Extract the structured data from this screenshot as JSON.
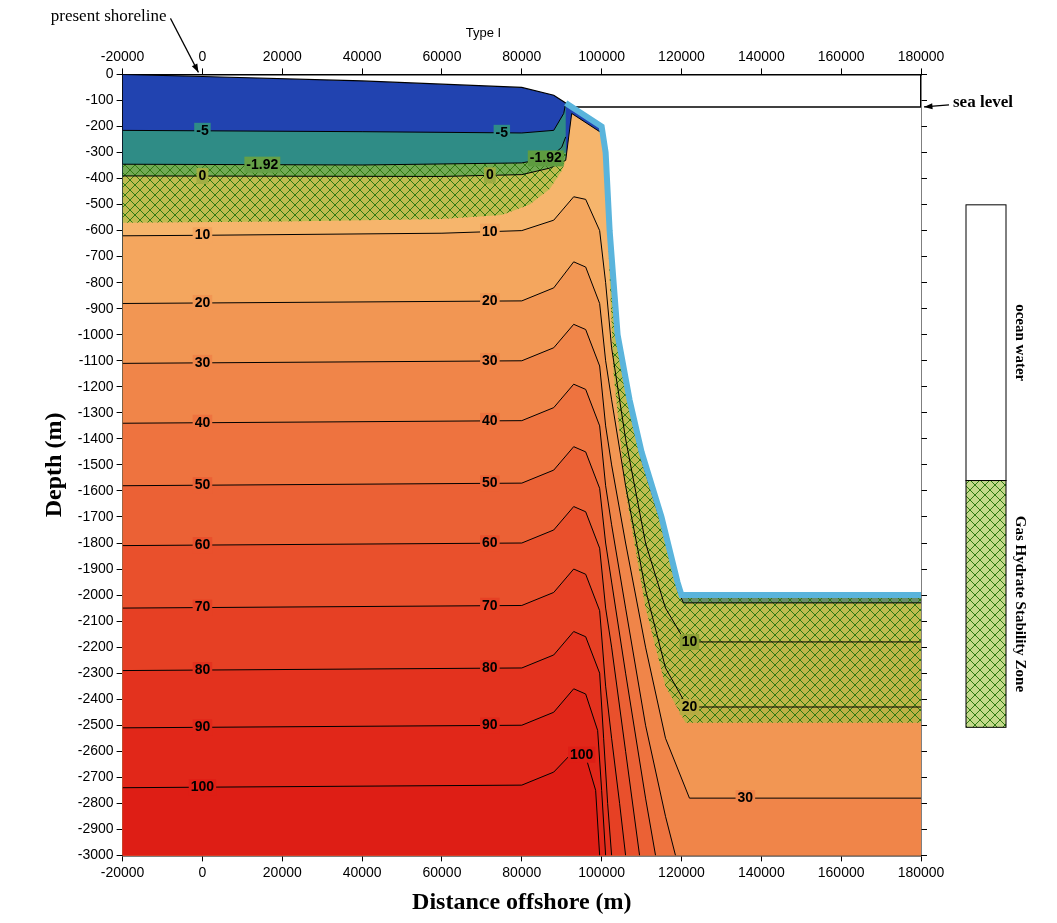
{
  "chart_data": {
    "type": "line",
    "title": "Type I",
    "x_label": "Distance offshore (m)",
    "y_label": "Depth (m)",
    "xlim": [
      -20000,
      180000
    ],
    "xticks": [
      -20000,
      0,
      20000,
      40000,
      60000,
      80000,
      100000,
      120000,
      140000,
      160000,
      180000
    ],
    "ylim": [
      -3000,
      0
    ],
    "yticks": [
      -3000,
      -2900,
      -2800,
      -2700,
      -2600,
      -2500,
      -2400,
      -2300,
      -2200,
      -2100,
      -2000,
      -1900,
      -1800,
      -1700,
      -1600,
      -1500,
      -1400,
      -1300,
      -1200,
      -1100,
      -1000,
      -900,
      -800,
      -700,
      -600,
      -500,
      -400,
      -300,
      -200,
      -100,
      0
    ],
    "grid": false,
    "legend": "right",
    "surface": {
      "color": "#2143b0",
      "points": [
        [
          -20000,
          0
        ],
        [
          0,
          -8
        ],
        [
          40000,
          -25
        ],
        [
          80000,
          -50
        ],
        [
          88000,
          -80
        ],
        [
          91000,
          -110
        ],
        [
          100000,
          -200
        ],
        [
          101000,
          -300
        ],
        [
          102000,
          -600
        ],
        [
          104000,
          -1000
        ],
        [
          107000,
          -1250
        ],
        [
          110000,
          -1450
        ],
        [
          115000,
          -1700
        ],
        [
          119000,
          -1950
        ],
        [
          120000,
          -2000
        ],
        [
          180000,
          -2000
        ]
      ]
    },
    "seafloor": {
      "color": "#5ab4dc",
      "points": [
        [
          91000,
          -110
        ],
        [
          100000,
          -200
        ],
        [
          101000,
          -300
        ],
        [
          102000,
          -600
        ],
        [
          104000,
          -1000
        ],
        [
          107000,
          -1250
        ],
        [
          110000,
          -1450
        ],
        [
          115000,
          -1700
        ],
        [
          119000,
          -1950
        ],
        [
          120000,
          -2000
        ],
        [
          180000,
          -2000
        ]
      ]
    },
    "isotherms": [
      {
        "value": -5,
        "color": "#2f8c86",
        "label_x": [
          0,
          75000
        ],
        "points": [
          [
            -20000,
            -215
          ],
          [
            40000,
            -220
          ],
          [
            80000,
            -225
          ],
          [
            88000,
            -215
          ],
          [
            90500,
            -150
          ],
          [
            91000,
            -110
          ]
        ]
      },
      {
        "value": -1.92,
        "color": "#368a78",
        "label_x": [
          15000,
          86000
        ],
        "points": [
          [
            -20000,
            -345
          ],
          [
            40000,
            -348
          ],
          [
            80000,
            -340
          ],
          [
            87000,
            -320
          ],
          [
            90000,
            -280
          ],
          [
            91000,
            -240
          ]
        ]
      },
      {
        "value": 0,
        "color": "#f6b56c",
        "label_x": [
          0,
          72000
        ],
        "points": [
          [
            -20000,
            -390
          ],
          [
            60000,
            -392
          ],
          [
            80000,
            -385
          ],
          [
            87000,
            -360
          ],
          [
            91000,
            -330
          ],
          [
            92500,
            -150
          ],
          [
            100000,
            -225
          ],
          [
            101000,
            -330
          ],
          [
            102000,
            -630
          ],
          [
            104000,
            -1030
          ],
          [
            107000,
            -1280
          ],
          [
            110000,
            -1480
          ],
          [
            115000,
            -1730
          ],
          [
            119000,
            -1980
          ],
          [
            120500,
            -2030
          ],
          [
            180000,
            -2030
          ]
        ]
      },
      {
        "value": 10,
        "color": "#f4a65e",
        "label_x": [
          0,
          72000,
          122000
        ],
        "points": [
          [
            -20000,
            -620
          ],
          [
            0,
            -618
          ],
          [
            60000,
            -610
          ],
          [
            80000,
            -600
          ],
          [
            88000,
            -560
          ],
          [
            93000,
            -470
          ],
          [
            96000,
            -480
          ],
          [
            99500,
            -600
          ],
          [
            101000,
            -800
          ],
          [
            102500,
            -1050
          ],
          [
            106000,
            -1400
          ],
          [
            111000,
            -1800
          ],
          [
            116000,
            -2050
          ],
          [
            121000,
            -2180
          ],
          [
            180000,
            -2180
          ]
        ]
      },
      {
        "value": 20,
        "color": "#f29653",
        "label_x": [
          0,
          72000,
          122000
        ],
        "points": [
          [
            -20000,
            -880
          ],
          [
            80000,
            -870
          ],
          [
            88000,
            -820
          ],
          [
            93000,
            -720
          ],
          [
            96000,
            -740
          ],
          [
            99500,
            -880
          ],
          [
            101000,
            -1100
          ],
          [
            102500,
            -1250
          ],
          [
            106000,
            -1580
          ],
          [
            111000,
            -1980
          ],
          [
            116000,
            -2280
          ],
          [
            121500,
            -2430
          ],
          [
            180000,
            -2430
          ]
        ]
      },
      {
        "value": 30,
        "color": "#f08549",
        "label_x": [
          0,
          72000,
          136000
        ],
        "points": [
          [
            -20000,
            -1110
          ],
          [
            80000,
            -1100
          ],
          [
            88000,
            -1050
          ],
          [
            93000,
            -960
          ],
          [
            96000,
            -980
          ],
          [
            99500,
            -1120
          ],
          [
            101000,
            -1350
          ],
          [
            102500,
            -1500
          ],
          [
            106000,
            -1800
          ],
          [
            111000,
            -2200
          ],
          [
            116000,
            -2550
          ],
          [
            122000,
            -2780
          ],
          [
            180000,
            -2780
          ]
        ]
      },
      {
        "value": 40,
        "color": "#ee733f",
        "label_x": [
          0,
          72000
        ],
        "points": [
          [
            -20000,
            -1340
          ],
          [
            80000,
            -1330
          ],
          [
            88000,
            -1280
          ],
          [
            93000,
            -1190
          ],
          [
            96000,
            -1210
          ],
          [
            99500,
            -1350
          ],
          [
            101000,
            -1580
          ],
          [
            102500,
            -1730
          ],
          [
            106000,
            -2050
          ],
          [
            111000,
            -2500
          ],
          [
            116000,
            -2850
          ],
          [
            118500,
            -3000
          ]
        ]
      },
      {
        "value": 50,
        "color": "#eb6135",
        "label_x": [
          0,
          72000
        ],
        "points": [
          [
            -20000,
            -1580
          ],
          [
            80000,
            -1570
          ],
          [
            88000,
            -1520
          ],
          [
            93000,
            -1430
          ],
          [
            96000,
            -1450
          ],
          [
            99500,
            -1590
          ],
          [
            101000,
            -1800
          ],
          [
            102500,
            -1950
          ],
          [
            106000,
            -2300
          ],
          [
            111000,
            -2780
          ],
          [
            113500,
            -3000
          ]
        ]
      },
      {
        "value": 60,
        "color": "#e9502c",
        "label_x": [
          0,
          72000
        ],
        "points": [
          [
            -20000,
            -1810
          ],
          [
            80000,
            -1800
          ],
          [
            88000,
            -1750
          ],
          [
            93000,
            -1660
          ],
          [
            96000,
            -1680
          ],
          [
            99500,
            -1820
          ],
          [
            101000,
            -2050
          ],
          [
            102500,
            -2200
          ],
          [
            106000,
            -2600
          ],
          [
            109500,
            -3000
          ]
        ]
      },
      {
        "value": 70,
        "color": "#e64024",
        "label_x": [
          0,
          72000
        ],
        "points": [
          [
            -20000,
            -2050
          ],
          [
            80000,
            -2040
          ],
          [
            88000,
            -1990
          ],
          [
            93000,
            -1900
          ],
          [
            96000,
            -1920
          ],
          [
            99500,
            -2060
          ],
          [
            101000,
            -2350
          ],
          [
            102500,
            -2550
          ],
          [
            104500,
            -2800
          ],
          [
            106000,
            -3000
          ]
        ]
      },
      {
        "value": 80,
        "color": "#e3321e",
        "label_x": [
          0,
          72000
        ],
        "points": [
          [
            -20000,
            -2290
          ],
          [
            80000,
            -2280
          ],
          [
            88000,
            -2230
          ],
          [
            93000,
            -2140
          ],
          [
            96000,
            -2160
          ],
          [
            99500,
            -2300
          ],
          [
            100500,
            -2550
          ],
          [
            101500,
            -2800
          ],
          [
            102500,
            -3000
          ]
        ]
      },
      {
        "value": 90,
        "color": "#e12719",
        "label_x": [
          0,
          72000
        ],
        "points": [
          [
            -20000,
            -2510
          ],
          [
            80000,
            -2500
          ],
          [
            88000,
            -2450
          ],
          [
            93000,
            -2360
          ],
          [
            96000,
            -2380
          ],
          [
            99000,
            -2520
          ],
          [
            100000,
            -2750
          ],
          [
            101000,
            -3000
          ]
        ]
      },
      {
        "value": 100,
        "color": "#de1e15",
        "label_x": [
          0,
          95000
        ],
        "points": [
          [
            -20000,
            -2740
          ],
          [
            80000,
            -2730
          ],
          [
            88000,
            -2680
          ],
          [
            93000,
            -2600
          ],
          [
            96000,
            -2620
          ],
          [
            98500,
            -2750
          ],
          [
            99500,
            -3000
          ]
        ]
      }
    ],
    "series": [
      {
        "name": "ocean water",
        "color": "#ffffff",
        "polygons": [
          [
            [
              92500,
              -125
            ],
            [
              100000,
              -200
            ],
            [
              101000,
              -300
            ],
            [
              102000,
              -600
            ],
            [
              104000,
              -1000
            ],
            [
              107000,
              -1250
            ],
            [
              110000,
              -1450
            ],
            [
              115000,
              -1700
            ],
            [
              119000,
              -1950
            ],
            [
              120000,
              -2000
            ],
            [
              180000,
              -2000
            ],
            [
              180000,
              -125
            ]
          ]
        ]
      },
      {
        "name": "Gas Hydrate Stability Zone",
        "color": "#9bbf3c",
        "polygons": [
          [
            [
              -20000,
              -345
            ],
            [
              40000,
              -348
            ],
            [
              80000,
              -340
            ],
            [
              87000,
              -320
            ],
            [
              91000,
              -300
            ],
            [
              91000,
              -330
            ],
            [
              90000,
              -370
            ],
            [
              87000,
              -440
            ],
            [
              82000,
              -500
            ],
            [
              75000,
              -540
            ],
            [
              60000,
              -555
            ],
            [
              20000,
              -565
            ],
            [
              -20000,
              -570
            ]
          ],
          [
            [
              101300,
              -390
            ],
            [
              102000,
              -600
            ],
            [
              104000,
              -1000
            ],
            [
              107000,
              -1250
            ],
            [
              110000,
              -1450
            ],
            [
              115000,
              -1700
            ],
            [
              119000,
              -1950
            ],
            [
              120000,
              -2000
            ],
            [
              180000,
              -2000
            ],
            [
              180000,
              -2490
            ],
            [
              121000,
              -2490
            ],
            [
              116000,
              -2350
            ],
            [
              111000,
              -2050
            ],
            [
              106000,
              -1600
            ],
            [
              103000,
              -1150
            ],
            [
              101800,
              -700
            ]
          ]
        ]
      }
    ],
    "sea_level": {
      "label": "sea level",
      "y": -125,
      "x": [
        92500,
        180000
      ]
    },
    "shoreline": {
      "label": "present shoreline",
      "x": 0,
      "y": 0
    }
  }
}
